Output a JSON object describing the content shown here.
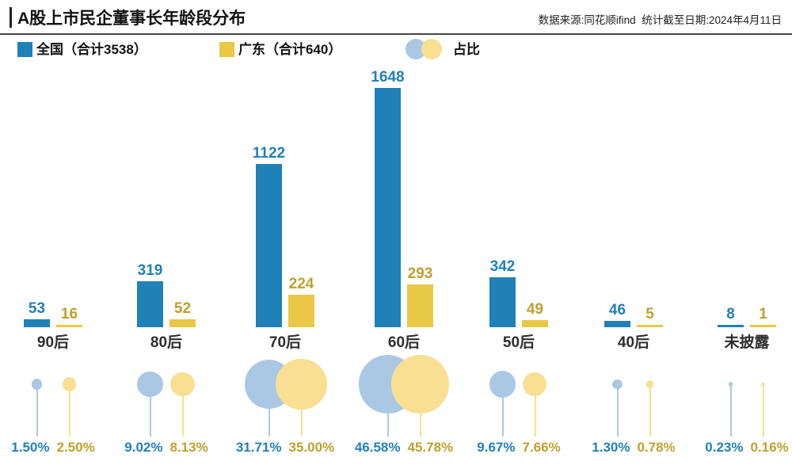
{
  "header": {
    "title": "A股上市民企董事长年龄段分布",
    "source": "数据来源:同花顺ifind  统计截至日期:2024年4月11日"
  },
  "legend": {
    "national": "全国（合计3538）",
    "guangdong": "广东（合计640）",
    "ratio": "占比"
  },
  "colors": {
    "national_bar": "#2080b8",
    "guangdong_bar": "#e8c845",
    "national_text": "#2080b8",
    "guangdong_text": "#bfa02d",
    "national_bubble": "#aac8e4",
    "guangdong_bubble": "#f8df91",
    "title_text": "#111111",
    "category_text": "#2e2e2e",
    "divider": "#454545"
  },
  "chart_data": {
    "type": "bar",
    "title": "A股上市民企董事长年龄段分布",
    "categories": [
      "90后",
      "80后",
      "70后",
      "60后",
      "50后",
      "40后",
      "未披露"
    ],
    "series": [
      {
        "name": "全国（合计3538）",
        "total": 3538,
        "color": "#2080b8",
        "text_color": "#2080b8",
        "bubble_color": "#aac8e4",
        "values": [
          53,
          319,
          1122,
          1648,
          342,
          46,
          8
        ],
        "pct_labels": [
          "1.50%",
          "9.02%",
          "31.71%",
          "46.58%",
          "9.67%",
          "1.30%",
          "0.23%"
        ],
        "pct_values": [
          1.5,
          9.02,
          31.71,
          46.58,
          9.67,
          1.3,
          0.23
        ]
      },
      {
        "name": "广东（合计640）",
        "total": 640,
        "color": "#e8c845",
        "text_color": "#bfa02d",
        "bubble_color": "#f8df91",
        "values": [
          16,
          52,
          224,
          293,
          49,
          5,
          1
        ],
        "pct_labels": [
          "2.50%",
          "8.13%",
          "35.00%",
          "45.78%",
          "7.66%",
          "0.78%",
          "0.16%"
        ],
        "pct_values": [
          2.5,
          8.13,
          35.0,
          45.78,
          7.66,
          0.78,
          0.16
        ]
      }
    ],
    "bubble_series_label": "占比",
    "ylim": [
      0,
      1700
    ],
    "grid": false,
    "legend_position": "top"
  }
}
